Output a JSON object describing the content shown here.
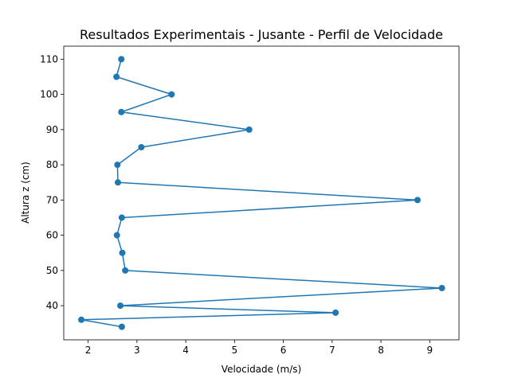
{
  "chart_data": {
    "type": "line",
    "title": "Resultados Experimentais - Jusante - Perfil de Velocidade",
    "xlabel": "Velocidade (m/s)",
    "ylabel": "Altura z (cm)",
    "xlim": [
      1.5,
      9.6
    ],
    "ylim": [
      30.3,
      113.7
    ],
    "xticks": [
      2,
      3,
      4,
      5,
      6,
      7,
      8,
      9
    ],
    "yticks": [
      40,
      50,
      60,
      70,
      80,
      90,
      100,
      110
    ],
    "grid": false,
    "series": [
      {
        "color": "#1f77b4",
        "marker": "circle",
        "x": [
          2.69,
          1.86,
          7.07,
          2.66,
          9.25,
          2.76,
          2.7,
          2.59,
          2.69,
          8.75,
          2.61,
          2.6,
          3.09,
          5.3,
          2.68,
          3.71,
          2.58,
          2.68
        ],
        "y": [
          34,
          36,
          38,
          40,
          45,
          50,
          55,
          60,
          65,
          70,
          75,
          80,
          85,
          90,
          95,
          100,
          105,
          110
        ]
      }
    ]
  }
}
